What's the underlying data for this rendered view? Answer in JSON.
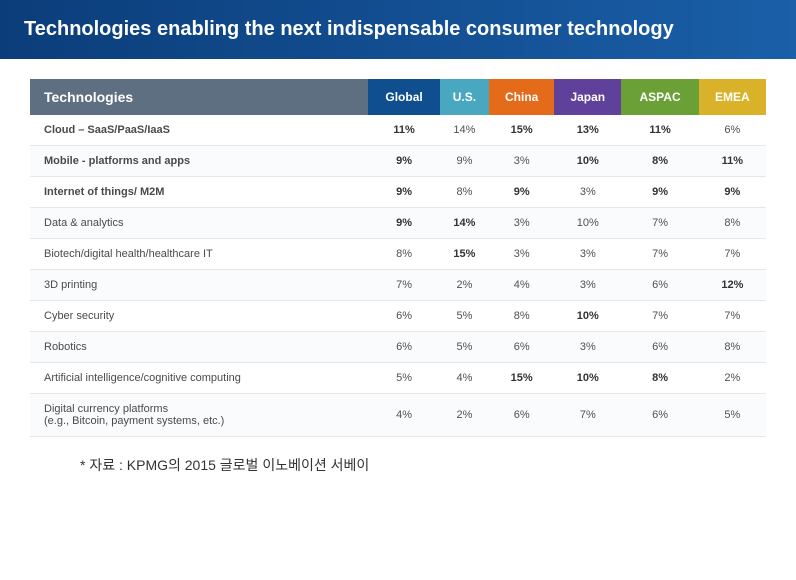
{
  "title": "Technologies enabling the next indispensable consumer technology",
  "caption": "* 자료 : KPMG의 2015 글로벌 이노베이션 서베이",
  "styling": {
    "header_gradient_from": "#0b3d7a",
    "header_gradient_to": "#1a5fa8",
    "header_text_color": "#ffffff",
    "row_border_color": "#e6e6e6",
    "row_alt_bg": "#fafbfc",
    "text_color": "#505050",
    "bold_text_color": "#333333",
    "title_fontsize": 20,
    "col_header_fontsize": 12,
    "tech_header_fontsize": 14,
    "body_fontsize": 11,
    "caption_fontsize": 14
  },
  "columns": [
    {
      "key": "tech",
      "label": "Technologies",
      "bg": "#5f6f82",
      "is_name": true
    },
    {
      "key": "global",
      "label": "Global",
      "bg": "#0f4f8f"
    },
    {
      "key": "us",
      "label": "U.S.",
      "bg": "#4aa7c0"
    },
    {
      "key": "china",
      "label": "China",
      "bg": "#e46b1a"
    },
    {
      "key": "japan",
      "label": "Japan",
      "bg": "#5f409a"
    },
    {
      "key": "aspac",
      "label": "ASPAC",
      "bg": "#6aa035"
    },
    {
      "key": "emea",
      "label": "EMEA",
      "bg": "#d9b22a"
    }
  ],
  "rows": [
    {
      "tech": "Cloud – SaaS/PaaS/IaaS",
      "tech_bold": true,
      "global": "11%",
      "global_bold": true,
      "us": "14%",
      "china": "15%",
      "china_bold": true,
      "japan": "13%",
      "japan_bold": true,
      "aspac": "11%",
      "aspac_bold": true,
      "emea": "6%"
    },
    {
      "tech": "Mobile - platforms and apps",
      "tech_bold": true,
      "global": "9%",
      "global_bold": true,
      "us": "9%",
      "china": "3%",
      "japan": "10%",
      "japan_bold": true,
      "aspac": "8%",
      "aspac_bold": true,
      "emea": "11%",
      "emea_bold": true
    },
    {
      "tech": "Internet of things/ M2M",
      "tech_bold": true,
      "global": "9%",
      "global_bold": true,
      "us": "8%",
      "china": "9%",
      "china_bold": true,
      "japan": "3%",
      "aspac": "9%",
      "aspac_bold": true,
      "emea": "9%",
      "emea_bold": true
    },
    {
      "tech": "Data & analytics",
      "global": "9%",
      "global_bold": true,
      "us": "14%",
      "us_bold": true,
      "china": "3%",
      "japan": "10%",
      "aspac": "7%",
      "emea": "8%"
    },
    {
      "tech": "Biotech/digital health/healthcare IT",
      "global": "8%",
      "us": "15%",
      "us_bold": true,
      "china": "3%",
      "japan": "3%",
      "aspac": "7%",
      "emea": "7%"
    },
    {
      "tech": "3D printing",
      "global": "7%",
      "us": "2%",
      "china": "4%",
      "japan": "3%",
      "aspac": "6%",
      "emea": "12%",
      "emea_bold": true
    },
    {
      "tech": "Cyber security",
      "global": "6%",
      "us": "5%",
      "china": "8%",
      "japan": "10%",
      "japan_bold": true,
      "aspac": "7%",
      "emea": "7%"
    },
    {
      "tech": "Robotics",
      "global": "6%",
      "us": "5%",
      "china": "6%",
      "japan": "3%",
      "aspac": "6%",
      "emea": "8%"
    },
    {
      "tech": "Artificial intelligence/cognitive computing",
      "global": "5%",
      "us": "4%",
      "china": "15%",
      "china_bold": true,
      "japan": "10%",
      "japan_bold": true,
      "aspac": "8%",
      "aspac_bold": true,
      "emea": "2%"
    },
    {
      "tech": "Digital currency platforms\n(e.g., Bitcoin, payment systems, etc.)",
      "global": "4%",
      "us": "2%",
      "china": "6%",
      "japan": "7%",
      "aspac": "6%",
      "emea": "5%"
    }
  ]
}
